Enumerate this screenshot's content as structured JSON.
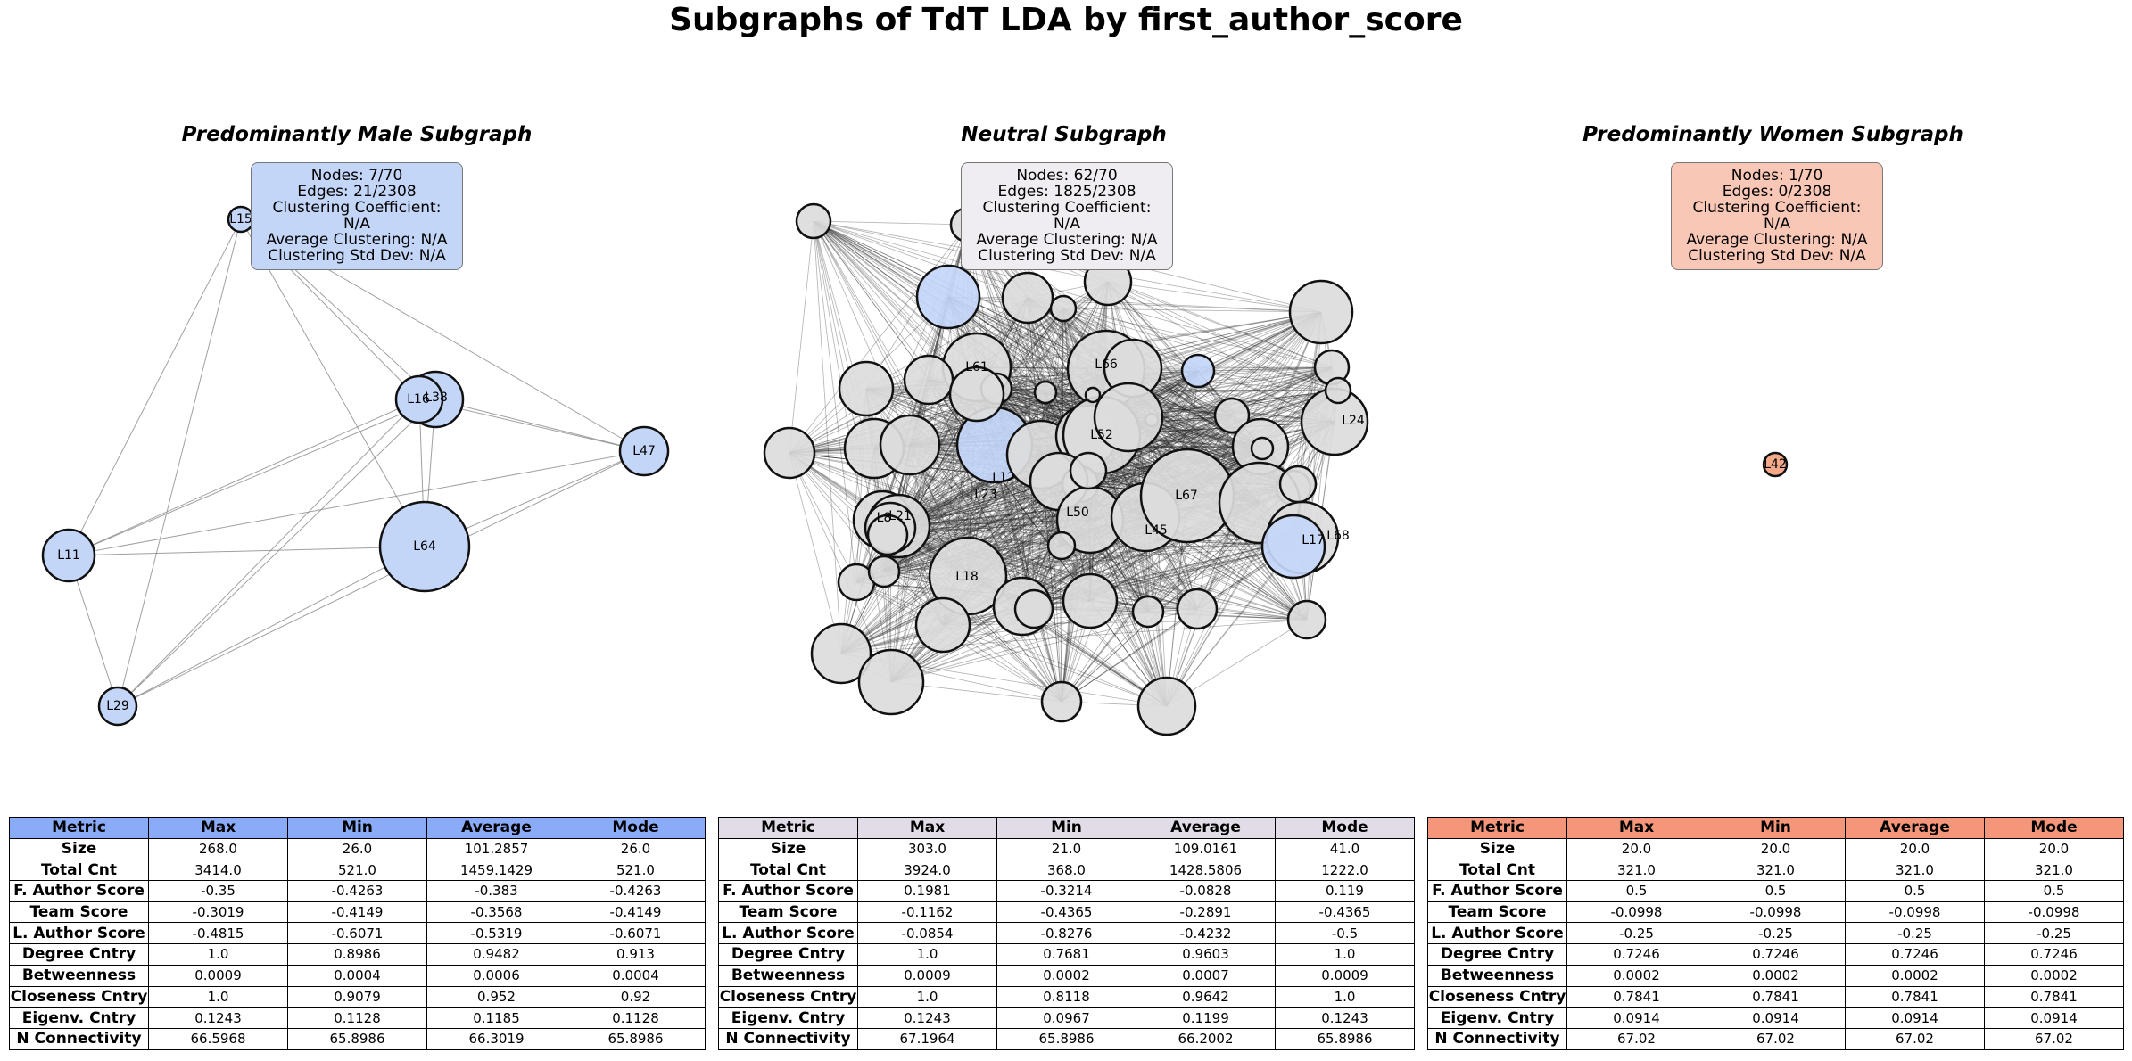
{
  "title": "Subgraphs of TdT LDA by first_author_score",
  "colors": {
    "male_node": "#c4d6f8",
    "neutral_node": "#dcdcdc",
    "women_node": "#f4a98a",
    "male_header": "#8aabf7",
    "neutral_header": "#e2dbe8",
    "women_header": "#f4967a",
    "male_box": "#c4d6f8",
    "neutral_box": "#efedf2",
    "women_box": "#f8c7b6"
  },
  "panels": [
    {
      "key": "male",
      "title": "Predominantly Male Subgraph",
      "stats": [
        "Nodes: 7/70",
        "Edges: 21/2308",
        "Clustering Coefficient: N/A",
        "Average Clustering: N/A",
        "Clustering Std Dev: N/A"
      ],
      "labels": [
        "L15",
        "L16",
        "L38",
        "L47",
        "L11",
        "L64",
        "L29"
      ],
      "table": {
        "headers": [
          "Metric",
          "Max",
          "Min",
          "Average",
          "Mode"
        ],
        "rows": [
          [
            "Size",
            "268.0",
            "26.0",
            "101.2857",
            "26.0"
          ],
          [
            "Total Cnt",
            "3414.0",
            "521.0",
            "1459.1429",
            "521.0"
          ],
          [
            "F. Author Score",
            "-0.35",
            "-0.4263",
            "-0.383",
            "-0.4263"
          ],
          [
            "Team Score",
            "-0.3019",
            "-0.4149",
            "-0.3568",
            "-0.4149"
          ],
          [
            "L. Author Score",
            "-0.4815",
            "-0.6071",
            "-0.5319",
            "-0.6071"
          ],
          [
            "Degree Cntry",
            "1.0",
            "0.8986",
            "0.9482",
            "0.913"
          ],
          [
            "Betweenness",
            "0.0009",
            "0.0004",
            "0.0006",
            "0.0004"
          ],
          [
            "Closeness Cntry",
            "1.0",
            "0.9079",
            "0.952",
            "0.92"
          ],
          [
            "Eigenv. Cntry",
            "0.1243",
            "0.1128",
            "0.1185",
            "0.1128"
          ],
          [
            "N Connectivity",
            "66.5968",
            "65.8986",
            "66.3019",
            "65.8986"
          ]
        ]
      }
    },
    {
      "key": "neutral",
      "title": "Neutral Subgraph",
      "stats": [
        "Nodes: 62/70",
        "Edges: 1825/2308",
        "Clustering Coefficient: N/A",
        "Average Clustering: N/A",
        "Clustering Std Dev: N/A"
      ],
      "labels": [
        "L61",
        "L66",
        "L52",
        "L24",
        "L12",
        "L23",
        "L67",
        "L50",
        "L45",
        "L17",
        "L68",
        "L18",
        "L8",
        "L21"
      ],
      "table": {
        "headers": [
          "Metric",
          "Max",
          "Min",
          "Average",
          "Mode"
        ],
        "rows": [
          [
            "Size",
            "303.0",
            "21.0",
            "109.0161",
            "41.0"
          ],
          [
            "Total Cnt",
            "3924.0",
            "368.0",
            "1428.5806",
            "1222.0"
          ],
          [
            "F. Author Score",
            "0.1981",
            "-0.3214",
            "-0.0828",
            "0.119"
          ],
          [
            "Team Score",
            "-0.1162",
            "-0.4365",
            "-0.2891",
            "-0.4365"
          ],
          [
            "L. Author Score",
            "-0.0854",
            "-0.8276",
            "-0.4232",
            "-0.5"
          ],
          [
            "Degree Cntry",
            "1.0",
            "0.7681",
            "0.9603",
            "1.0"
          ],
          [
            "Betweenness",
            "0.0009",
            "0.0002",
            "0.0007",
            "0.0009"
          ],
          [
            "Closeness Cntry",
            "1.0",
            "0.8118",
            "0.9642",
            "1.0"
          ],
          [
            "Eigenv. Cntry",
            "0.1243",
            "0.0967",
            "0.1199",
            "0.1243"
          ],
          [
            "N Connectivity",
            "67.1964",
            "65.8986",
            "66.2002",
            "65.8986"
          ]
        ]
      }
    },
    {
      "key": "women",
      "title": "Predominantly Women Subgraph",
      "stats": [
        "Nodes: 1/70",
        "Edges: 0/2308",
        "Clustering Coefficient: N/A",
        "Average Clustering: N/A",
        "Clustering Std Dev: N/A"
      ],
      "labels": [
        "L42"
      ],
      "table": {
        "headers": [
          "Metric",
          "Max",
          "Min",
          "Average",
          "Mode"
        ],
        "rows": [
          [
            "Size",
            "20.0",
            "20.0",
            "20.0",
            "20.0"
          ],
          [
            "Total Cnt",
            "321.0",
            "321.0",
            "321.0",
            "321.0"
          ],
          [
            "F. Author Score",
            "0.5",
            "0.5",
            "0.5",
            "0.5"
          ],
          [
            "Team Score",
            "-0.0998",
            "-0.0998",
            "-0.0998",
            "-0.0998"
          ],
          [
            "L. Author Score",
            "-0.25",
            "-0.25",
            "-0.25",
            "-0.25"
          ],
          [
            "Degree Cntry",
            "0.7246",
            "0.7246",
            "0.7246",
            "0.7246"
          ],
          [
            "Betweenness",
            "0.0002",
            "0.0002",
            "0.0002",
            "0.0002"
          ],
          [
            "Closeness Cntry",
            "0.7841",
            "0.7841",
            "0.7841",
            "0.7841"
          ],
          [
            "Eigenv. Cntry",
            "0.0914",
            "0.0914",
            "0.0914",
            "0.0914"
          ],
          [
            "N Connectivity",
            "67.02",
            "67.02",
            "67.02",
            "67.02"
          ]
        ]
      }
    }
  ]
}
